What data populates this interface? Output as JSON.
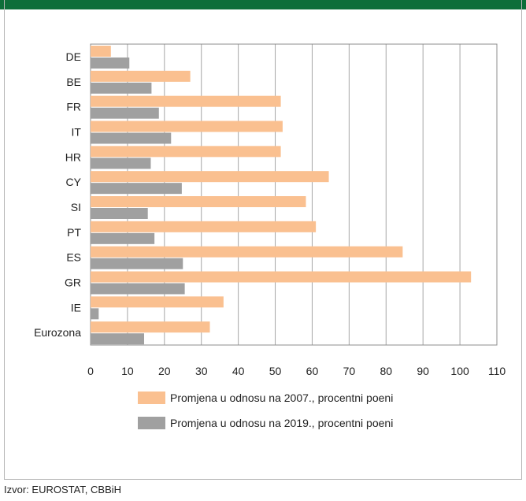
{
  "source": "Izvor: EUROSTAT, CBBiH",
  "chart_data": {
    "type": "bar",
    "orientation": "horizontal",
    "categories": [
      "DE",
      "BE",
      "FR",
      "IT",
      "HR",
      "CY",
      "SI",
      "PT",
      "ES",
      "GR",
      "IE",
      "Eurozona"
    ],
    "series": [
      {
        "name": "Promjena u odnosu na 2007., procentni poeni",
        "color": "#fac090",
        "values": [
          5.5,
          27,
          51.5,
          52,
          51.5,
          64.5,
          58.3,
          61,
          84.5,
          103,
          36,
          32.3
        ]
      },
      {
        "name": "Promjena u odnosu na 2019., procentni poeni",
        "color": "#a0a0a0",
        "values": [
          10.5,
          16.5,
          18.5,
          21.8,
          16.3,
          24.7,
          15.5,
          17.3,
          25,
          25.5,
          2.2,
          14.5
        ]
      }
    ],
    "xlim": [
      0,
      110
    ],
    "xticks": [
      0,
      10,
      20,
      30,
      40,
      50,
      60,
      70,
      80,
      90,
      100,
      110
    ],
    "grid": "vertical",
    "legend": "bottom"
  }
}
